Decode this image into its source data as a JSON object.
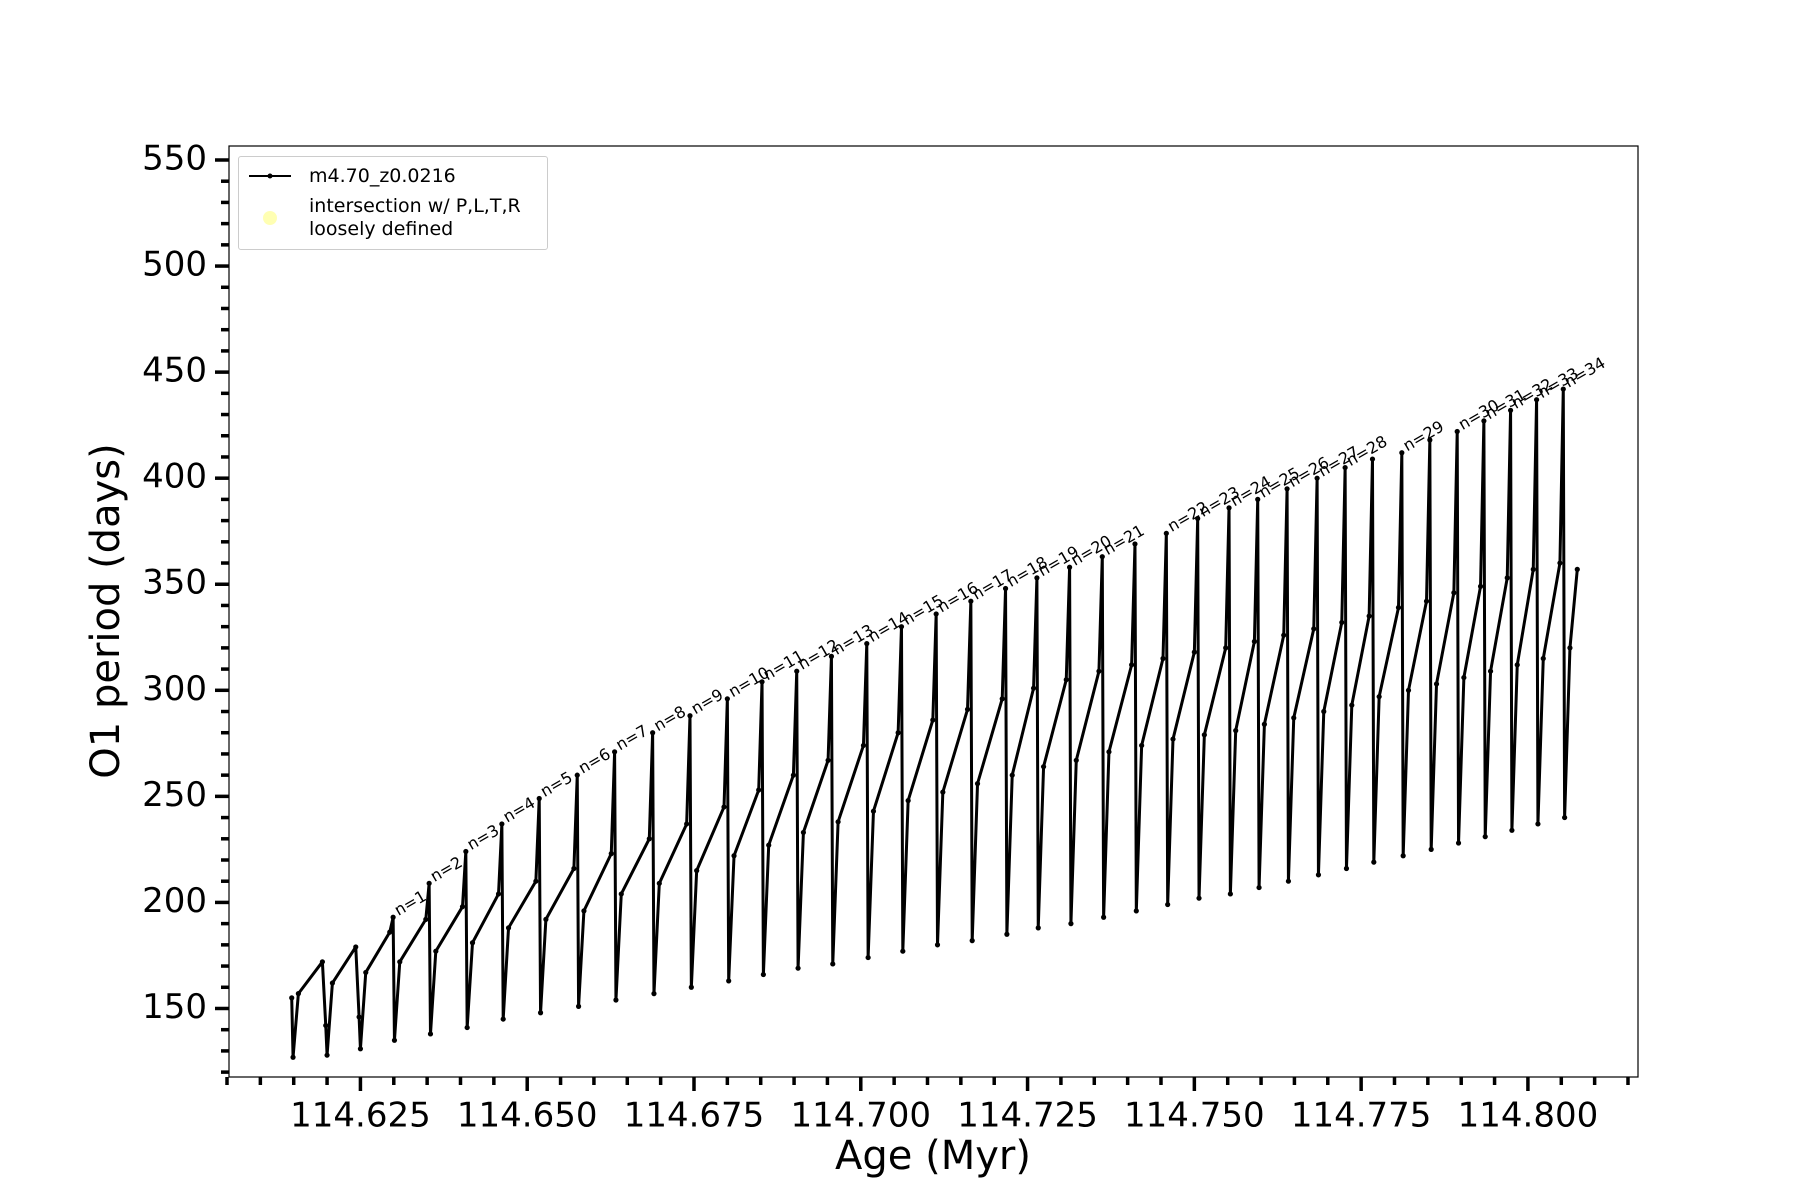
{
  "chart_data": {
    "type": "line",
    "xlabel": "Age (Myr)",
    "ylabel": "O1 period (days)",
    "xlim": [
      114.6053,
      114.8165
    ],
    "ylim": [
      117.7,
      556.6
    ],
    "xticks": [
      114.625,
      {
        "value": 114.65,
        "label": "114.650"
      },
      114.675,
      {
        "value": 114.7,
        "label": "114.700"
      },
      114.725,
      {
        "value": 114.75,
        "label": "114.750"
      },
      114.775,
      {
        "value": 114.8,
        "label": "114.800"
      }
    ],
    "xminorticks": [
      114.605,
      114.61,
      114.615,
      114.62,
      114.63,
      114.635,
      114.64,
      114.645,
      114.655,
      114.66,
      114.665,
      114.67,
      114.68,
      114.685,
      114.69,
      114.695,
      114.705,
      114.71,
      114.715,
      114.72,
      114.73,
      114.735,
      114.74,
      114.745,
      114.755,
      114.76,
      114.765,
      114.77,
      114.78,
      114.785,
      114.79,
      114.795,
      114.805,
      114.81,
      114.815
    ],
    "yticks": [
      150,
      200,
      250,
      300,
      350,
      400,
      450,
      500,
      550
    ],
    "yminorticks": [
      120,
      130,
      140,
      160,
      170,
      180,
      190,
      210,
      220,
      230,
      240,
      260,
      270,
      280,
      290,
      310,
      320,
      330,
      340,
      360,
      370,
      380,
      390,
      410,
      420,
      430,
      440,
      460,
      470,
      480,
      490,
      510,
      520,
      530,
      540
    ],
    "grid": false,
    "legend": "upper left",
    "series": [
      {
        "name": "m4.70_z0.0216",
        "color": "#000000",
        "marker": true,
        "x": [
          114.6147,
          114.6149,
          114.6157,
          114.6193,
          114.6198,
          114.62,
          114.6208,
          114.6243,
          114.6248,
          114.625,
          114.6258,
          114.6294,
          114.6299,
          114.6301,
          114.6309,
          114.6348,
          114.6353,
          114.6355,
          114.6363,
          114.6403,
          114.6408,
          114.641,
          114.6418,
          114.6457,
          114.6462,
          114.6464,
          114.6472,
          114.6513,
          114.6518,
          114.652,
          114.6528,
          114.657,
          114.6575,
          114.6577,
          114.6585,
          114.6626,
          114.6631,
          114.6633,
          114.6641,
          114.6683,
          114.6688,
          114.669,
          114.6698,
          114.6739,
          114.6744,
          114.6746,
          114.6754,
          114.6795,
          114.68,
          114.6802,
          114.681,
          114.6847,
          114.6852,
          114.6854,
          114.6862,
          114.6899,
          114.6904,
          114.6906,
          114.6914,
          114.6951,
          114.6956,
          114.6958,
          114.6966,
          114.7004,
          114.7009,
          114.7011,
          114.7019,
          114.7056,
          114.7061,
          114.7063,
          114.7071,
          114.7108,
          114.7113,
          114.7115,
          114.7123,
          114.716,
          114.7165,
          114.7167,
          114.7175,
          114.7212,
          114.7217,
          114.7219,
          114.7227,
          114.7259,
          114.7264,
          114.7266,
          114.7274,
          114.7308,
          114.7313,
          114.7315,
          114.7323,
          114.7357,
          114.7362,
          114.7364,
          114.7372,
          114.7406,
          114.7411,
          114.7413,
          114.7421,
          114.7453,
          114.7458,
          114.746,
          114.7468,
          114.75,
          114.7505,
          114.7507,
          114.7515,
          114.7547,
          114.7552,
          114.7554,
          114.7562,
          114.759,
          114.7595,
          114.7597,
          114.7605,
          114.7634,
          114.7639,
          114.7641,
          114.7649,
          114.7679,
          114.7684,
          114.7686,
          114.7694,
          114.7721,
          114.7726,
          114.7728,
          114.7736,
          114.7762,
          114.7767,
          114.7769,
          114.7777,
          114.7806,
          114.7811,
          114.7813,
          114.7821,
          114.7848,
          114.7853,
          114.7855,
          114.7863,
          114.7889,
          114.7894,
          114.7896,
          114.7904,
          114.7929,
          114.7934,
          114.7936,
          114.7944,
          114.7969,
          114.7974,
          114.7976,
          114.7984,
          114.8008,
          114.8013,
          114.8015,
          114.8023,
          114.8048,
          114.8053,
          114.8055,
          114.8063,
          114.8074
        ],
        "values": [
          155,
          127,
          157,
          172,
          142,
          128,
          162,
          179,
          146,
          131,
          167,
          186,
          193,
          135,
          172,
          192,
          209,
          138,
          177,
          198,
          224,
          141,
          181,
          204,
          237,
          145,
          188,
          210,
          249,
          148,
          192,
          216,
          260,
          151,
          196,
          223,
          271,
          154,
          204,
          230,
          280,
          157,
          209,
          237,
          288,
          160,
          215,
          245,
          296,
          163,
          222,
          253,
          304,
          166,
          227,
          260,
          309,
          169,
          233,
          267,
          316,
          171,
          238,
          274,
          322,
          174,
          243,
          280,
          330,
          177,
          248,
          286,
          336,
          180,
          252,
          291,
          342,
          182,
          256,
          296,
          348,
          185,
          260,
          301,
          353,
          188,
          264,
          305,
          358,
          190,
          267,
          309,
          363,
          193,
          271,
          312,
          369,
          196,
          274,
          315,
          374,
          199,
          277,
          318,
          381,
          202,
          279,
          320,
          386,
          204,
          281,
          323,
          390,
          207,
          284,
          326,
          395,
          210,
          287,
          329,
          400,
          213,
          290,
          332,
          405,
          216,
          293,
          335,
          409,
          219,
          297,
          339,
          412,
          222,
          300,
          342,
          418,
          225,
          303,
          346,
          422,
          228,
          306,
          349,
          427,
          231,
          309,
          353,
          432,
          234,
          312,
          357,
          437,
          237,
          315,
          360,
          442,
          240,
          320,
          357
        ]
      },
      {
        "name": "intersection w/ P,L,T,R\nloosely defined",
        "color": "#ffffb3",
        "marker": true,
        "x": [],
        "values": []
      }
    ],
    "annotations": [
      {
        "text": "n=1",
        "x": 114.6299,
        "y": 193
      },
      {
        "text": "n=2",
        "x": 114.6353,
        "y": 209
      },
      {
        "text": "n=3",
        "x": 114.6408,
        "y": 224
      },
      {
        "text": "n=4",
        "x": 114.6462,
        "y": 237
      },
      {
        "text": "n=5",
        "x": 114.6518,
        "y": 249
      },
      {
        "text": "n=6",
        "x": 114.6575,
        "y": 260
      },
      {
        "text": "n=7",
        "x": 114.6631,
        "y": 271
      },
      {
        "text": "n=8",
        "x": 114.6688,
        "y": 280
      },
      {
        "text": "n=9",
        "x": 114.6744,
        "y": 288
      },
      {
        "text": "n=10",
        "x": 114.68,
        "y": 296
      },
      {
        "text": "n=11",
        "x": 114.6852,
        "y": 304
      },
      {
        "text": "n=12",
        "x": 114.6904,
        "y": 309
      },
      {
        "text": "n=13",
        "x": 114.6956,
        "y": 316
      },
      {
        "text": "n=14",
        "x": 114.7009,
        "y": 322
      },
      {
        "text": "n=15",
        "x": 114.7061,
        "y": 330
      },
      {
        "text": "n=16",
        "x": 114.7113,
        "y": 336
      },
      {
        "text": "n=17",
        "x": 114.7165,
        "y": 342
      },
      {
        "text": "n=18",
        "x": 114.7217,
        "y": 348
      },
      {
        "text": "n=19",
        "x": 114.7264,
        "y": 353
      },
      {
        "text": "n=20",
        "x": 114.7313,
        "y": 358
      },
      {
        "text": "n=21",
        "x": 114.7362,
        "y": 363
      },
      {
        "text": "n=22",
        "x": 114.7458,
        "y": 374
      },
      {
        "text": "n=23",
        "x": 114.7505,
        "y": 381
      },
      {
        "text": "n=24",
        "x": 114.7552,
        "y": 386
      },
      {
        "text": "n=25",
        "x": 114.7595,
        "y": 390
      },
      {
        "text": "n=26",
        "x": 114.7639,
        "y": 395
      },
      {
        "text": "n=27",
        "x": 114.7684,
        "y": 400
      },
      {
        "text": "n=28",
        "x": 114.7726,
        "y": 405
      },
      {
        "text": "n=29",
        "x": 114.7811,
        "y": 412
      },
      {
        "text": "n=30",
        "x": 114.7894,
        "y": 422
      },
      {
        "text": "n=31",
        "x": 114.7934,
        "y": 427
      },
      {
        "text": "n=32",
        "x": 114.7974,
        "y": 432
      },
      {
        "text": "n=33",
        "x": 114.8013,
        "y": 437
      },
      {
        "text": "n=34",
        "x": 114.8053,
        "y": 442
      }
    ]
  }
}
